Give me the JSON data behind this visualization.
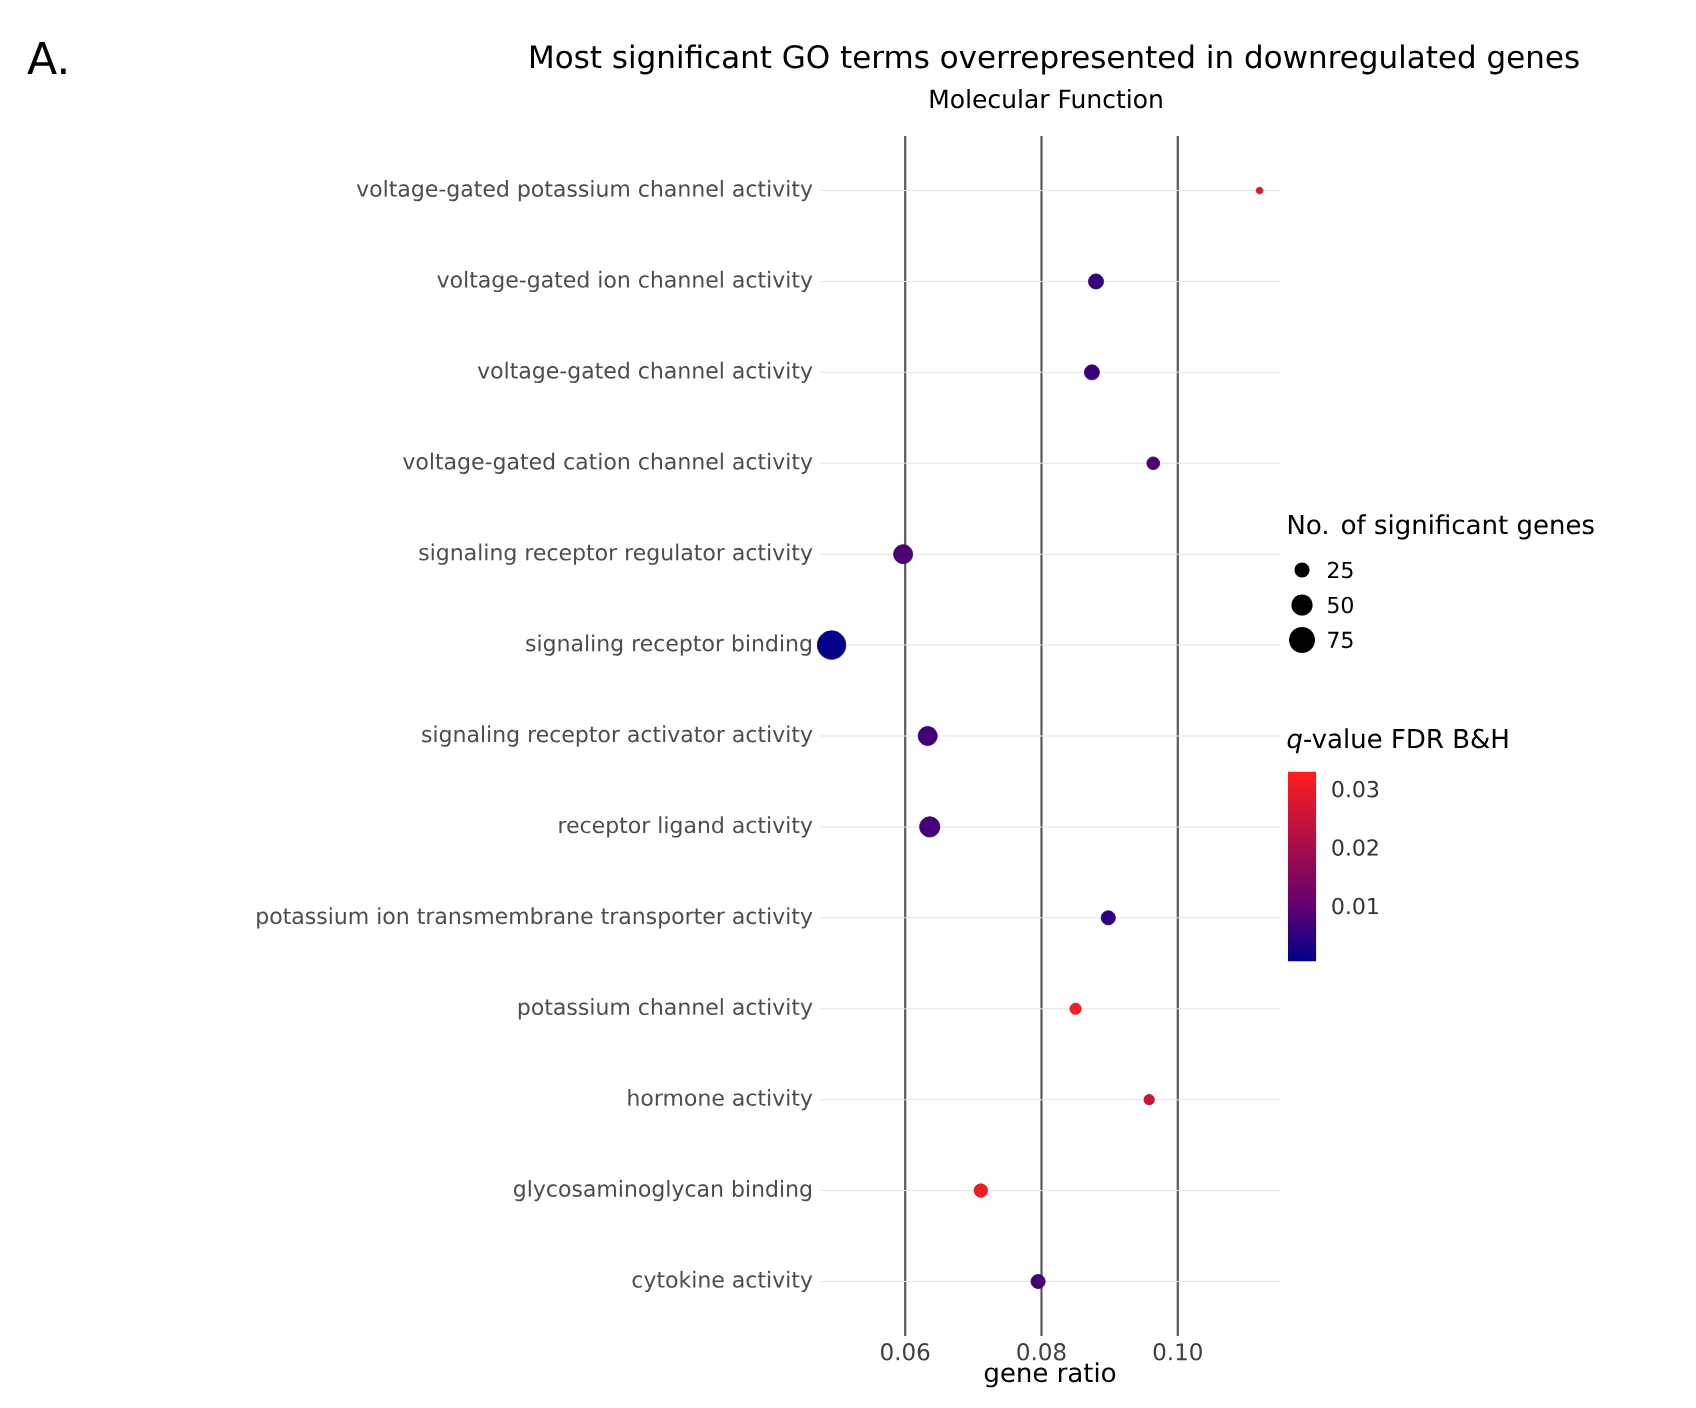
{
  "chart_data": {
    "type": "bubble",
    "orientation": "horizontal",
    "title": "Most significant GO terms overrepresented in downregulated genes",
    "subtitle": "Molecular Function",
    "xlabel": "gene ratio",
    "legend_title": "No. of significant genes",
    "clabel": "*q*-value FDR B&H",
    "annotations": [
      "A."
    ],
    "categories": [
      "voltage-gated potassium channel activity",
      "voltage-gated ion channel activity",
      "voltage-gated channel activity",
      "voltage-gated cation channel activity",
      "signaling receptor regulator activity",
      "signaling receptor binding",
      "signaling receptor activator activity",
      "receptor ligand activity",
      "potassium ion transmembrane transporter activity",
      "potassium channel activity",
      "hormone activity",
      "glycosaminoglycan binding",
      "cytokine activity"
    ],
    "values": [
      0.112,
      0.088,
      0.0874,
      0.0964,
      0.0597,
      0.0492,
      0.0633,
      0.0636,
      0.0898,
      0.085,
      0.0958,
      0.0711,
      0.0795
    ],
    "sizes": [
      5,
      25,
      25,
      18,
      40,
      90,
      40,
      45,
      22,
      14,
      12,
      20,
      22
    ],
    "cvalues": [
      0.028,
      0.006,
      0.006,
      0.008,
      0.008,
      0.001,
      0.007,
      0.007,
      0.005,
      0.032,
      0.026,
      0.031,
      0.007
    ],
    "size_legend": [
      25,
      50,
      75
    ],
    "clim": [
      0.0005,
      0.033
    ],
    "cticks": [
      0.01,
      0.02,
      0.03
    ],
    "xlim": [
      0.0475,
      0.115
    ],
    "xticks": [
      0.06,
      0.08,
      {
        "value": 0.1,
        "label": "0.10"
      }
    ],
    "grid": true,
    "marker": "circle"
  }
}
